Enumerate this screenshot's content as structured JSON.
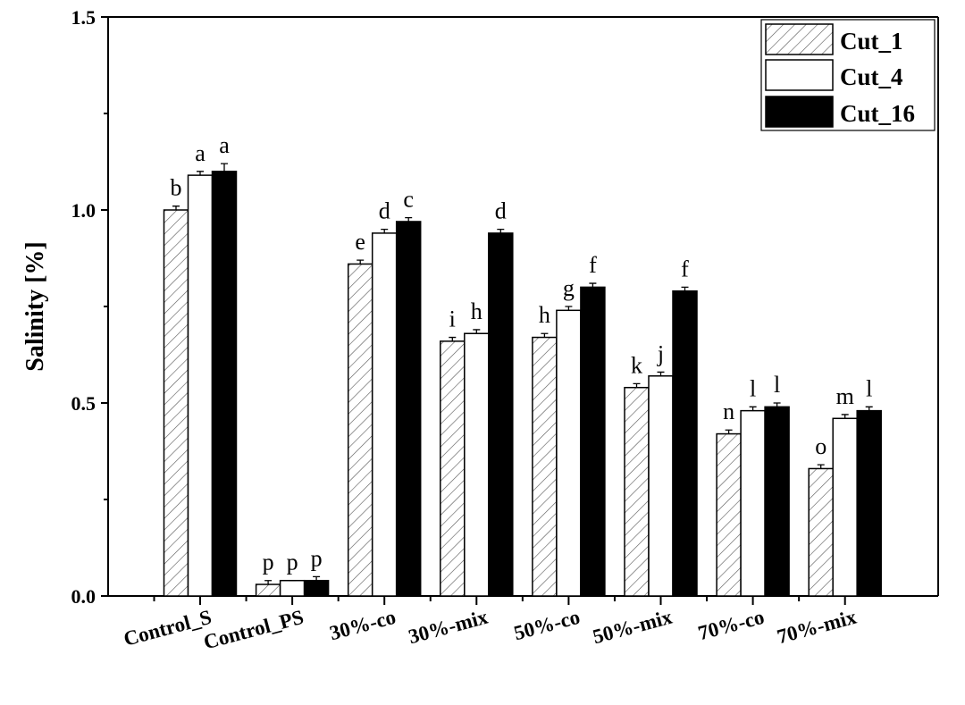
{
  "chart_data": {
    "type": "bar",
    "ylabel": "Salinity [%]",
    "xlabel": "",
    "ylim": [
      0.0,
      1.5
    ],
    "yticks": [
      "0.0",
      "0.5",
      "1.0",
      "1.5"
    ],
    "categories": [
      "Control_S",
      "Control_PS",
      "30%-co",
      "30%-mix",
      "50%-co",
      "50%-mix",
      "70%-co",
      "70%-mix"
    ],
    "legend_position": "top-right",
    "series": [
      {
        "name": "Cut_1",
        "pattern": "hatched",
        "values": [
          1.0,
          0.03,
          0.86,
          0.66,
          0.67,
          0.54,
          0.42,
          0.33
        ],
        "errors": [
          0.01,
          0.01,
          0.01,
          0.01,
          0.01,
          0.01,
          0.01,
          0.01
        ],
        "labels": [
          "b",
          "p",
          "e",
          "i",
          "h",
          "k",
          "n",
          "o"
        ]
      },
      {
        "name": "Cut_4",
        "pattern": "white",
        "values": [
          1.09,
          0.04,
          0.94,
          0.68,
          0.74,
          0.57,
          0.48,
          0.46
        ],
        "errors": [
          0.01,
          0.0,
          0.01,
          0.01,
          0.01,
          0.01,
          0.01,
          0.01
        ],
        "labels": [
          "a",
          "p",
          "d",
          "h",
          "g",
          "j",
          "l",
          "m"
        ]
      },
      {
        "name": "Cut_16",
        "pattern": "black",
        "values": [
          1.1,
          0.04,
          0.97,
          0.94,
          0.8,
          0.79,
          0.49,
          0.48
        ],
        "errors": [
          0.02,
          0.01,
          0.01,
          0.01,
          0.01,
          0.01,
          0.01,
          0.01
        ],
        "labels": [
          "a",
          "p",
          "c",
          "d",
          "f",
          "f",
          "l",
          "l"
        ]
      }
    ]
  }
}
